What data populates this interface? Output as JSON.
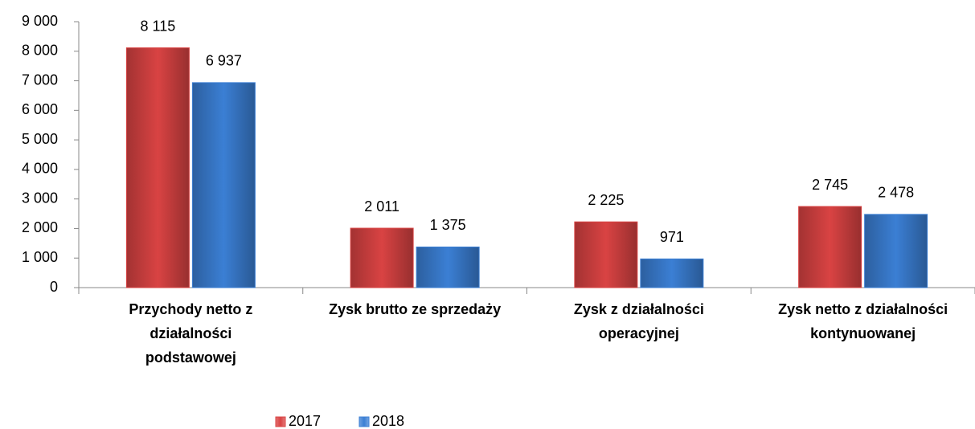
{
  "chart_data": {
    "type": "bar",
    "categories": [
      "Przychody netto  z działalności podstawowej",
      "Zysk brutto ze sprzedaży",
      "Zysk z działalności operacyjnej",
      "Zysk netto z działalności kontynuowanej"
    ],
    "series": [
      {
        "name": "2017",
        "color": "#d94343",
        "values": [
          8115,
          2011,
          2225,
          2745
        ],
        "value_labels": [
          "8 115",
          "2 011",
          "2 225",
          "2 745"
        ]
      },
      {
        "name": "2018",
        "color": "#3b7fd4",
        "values": [
          6937,
          1375,
          971,
          2478
        ],
        "value_labels": [
          "6 937",
          "1 375",
          "971",
          "2 478"
        ]
      }
    ],
    "ylim": [
      0,
      9000
    ],
    "yticks": [
      0,
      {
        "value": 1000,
        "label": "1 000"
      },
      {
        "value": 2000,
        "label": "2 000"
      },
      {
        "value": 3000,
        "label": "3 000"
      },
      {
        "value": 4000,
        "label": "4 000"
      },
      {
        "value": 5000,
        "label": "5 000"
      },
      {
        "value": 6000,
        "label": "6 000"
      },
      {
        "value": 7000,
        "label": "7 000"
      },
      {
        "value": 8000,
        "label": "8 000"
      },
      {
        "value": 9000,
        "label": "9 000"
      }
    ],
    "grid": false,
    "legend": "bottom"
  }
}
